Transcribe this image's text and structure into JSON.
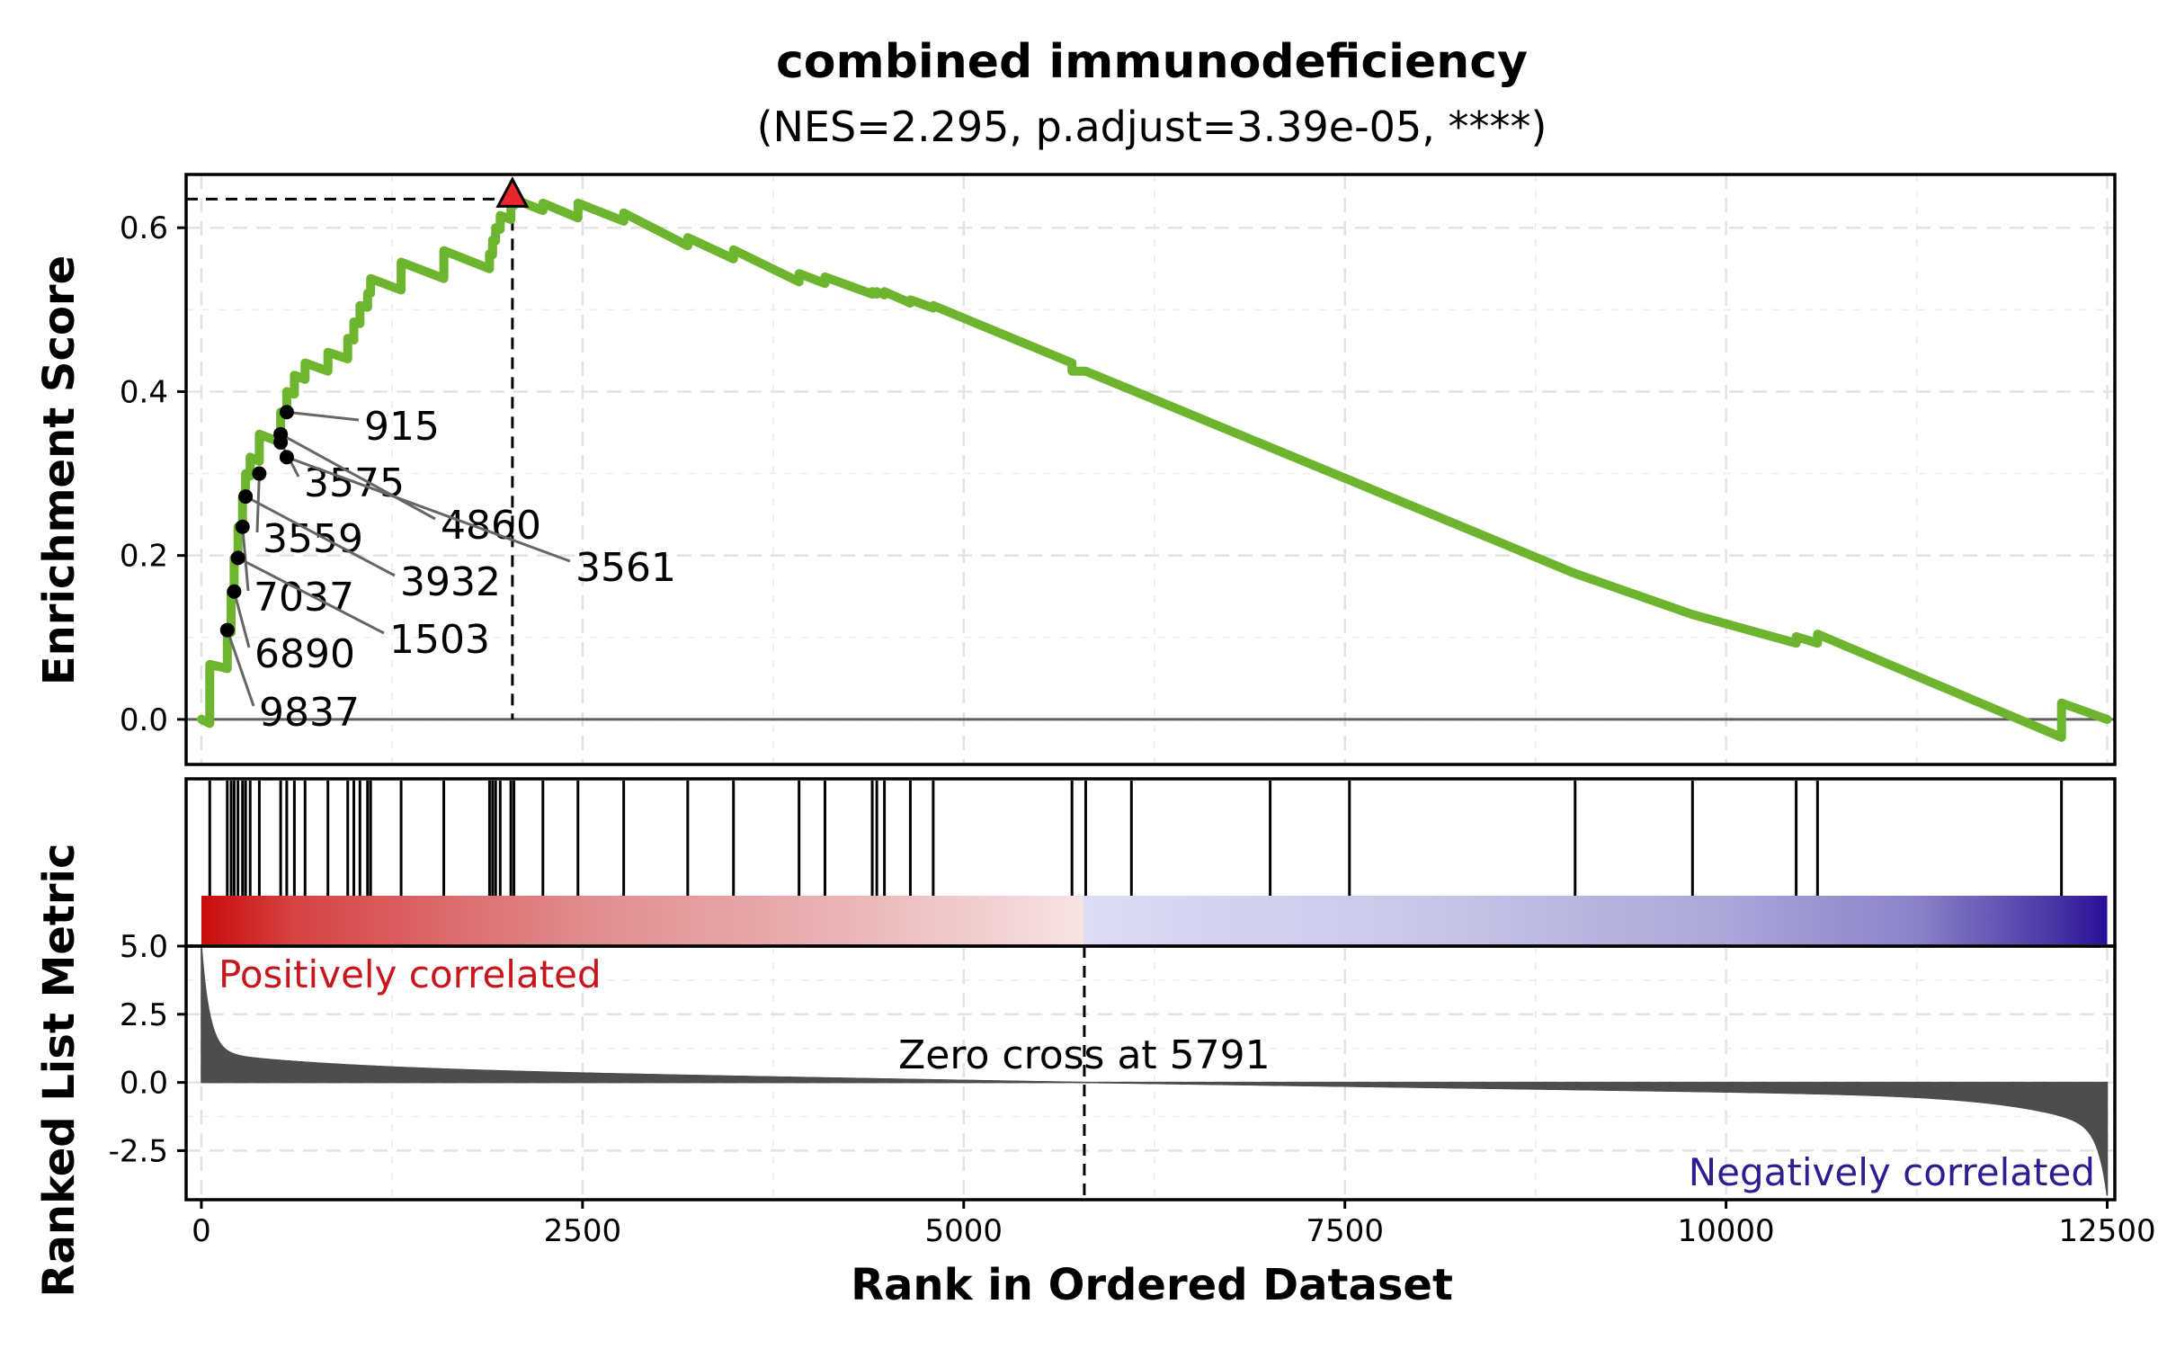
{
  "chart_data": {
    "type": "line",
    "title": "combined immunodeficiency",
    "subtitle": "(NES=2.295, p.adjust=3.39e-05, ****)",
    "xlabel": "Rank in Ordered Dataset",
    "xlim": [
      -100,
      12550
    ],
    "x_ticks": [
      0,
      2500,
      5000,
      7500,
      10000,
      12500
    ],
    "x_tick_labels": [
      "0",
      "2500",
      "5000",
      "7500",
      "10000",
      "12500"
    ],
    "panels": {
      "enrichment": {
        "ylabel": "Enrichment Score",
        "ylim": [
          -0.055,
          0.665
        ],
        "y_ticks": [
          0.0,
          0.2,
          0.4,
          0.6
        ],
        "y_tick_labels": [
          "0.0",
          "0.2",
          "0.4",
          "0.6"
        ],
        "line_color": "#6db52e",
        "peak": {
          "rank": 2040,
          "score": 0.635,
          "marker_color": "#e8262b"
        }
      },
      "hits": {
        "ranks": [
          55,
          170,
          195,
          215,
          240,
          270,
          290,
          320,
          380,
          520,
          560,
          610,
          680,
          830,
          960,
          1000,
          1040,
          1090,
          1110,
          1310,
          1590,
          1890,
          1910,
          1930,
          1960,
          2030,
          2050,
          2240,
          2470,
          2770,
          3190,
          3490,
          3920,
          4090,
          4400,
          4430,
          4480,
          4650,
          4800,
          5710,
          5800,
          6100,
          7010,
          7530,
          9010,
          9780,
          10460,
          10600,
          12200
        ]
      },
      "ranked_metric": {
        "ylabel": "Ranked List Metric",
        "ylim": [
          -4.3,
          5.0
        ],
        "y_ticks": [
          -2.5,
          0.0,
          2.5,
          5.0
        ],
        "y_tick_labels": [
          "-2.5",
          "0.0",
          "2.5",
          "5.0"
        ],
        "fill_color": "#4d4d4d",
        "zero_cross": 5791,
        "zero_cross_label": "Zero cross at 5791",
        "positive_label": "Positively correlated",
        "negative_label": "Negatively correlated",
        "positive_color": "#c8171c",
        "negative_color": "#2d1e8f"
      }
    },
    "series": [
      {
        "x": [
          0,
          55,
          55,
          170,
          170,
          195,
          195,
          215,
          215,
          240,
          240,
          270,
          270,
          290,
          290,
          320,
          320,
          380,
          380,
          520,
          520,
          560,
          560,
          610,
          610,
          680,
          680,
          830,
          830,
          960,
          960,
          1000,
          1000,
          1040,
          1040,
          1090,
          1090,
          1110,
          1110,
          1310,
          1310,
          1590,
          1590,
          1890,
          1890,
          1910,
          1910,
          1930,
          1930,
          1960,
          1960,
          2030,
          2030,
          2050,
          2050,
          2240,
          2240,
          2470,
          2470,
          2770,
          2770,
          3190,
          3190,
          3490,
          3490,
          3920,
          3920,
          4090,
          4090,
          4400,
          4400,
          4430,
          4430,
          4480,
          4480,
          4650,
          4650,
          4800,
          4800,
          5710,
          5710,
          5800,
          5800,
          6100,
          6100,
          7010,
          7010,
          7530,
          7530,
          9010,
          9010,
          9780,
          9780,
          10460,
          10460,
          10600,
          10600,
          12200,
          12200,
          12500
        ],
        "y": [
          0.0,
          -0.005,
          0.067,
          0.062,
          0.109,
          0.106,
          0.156,
          0.155,
          0.197,
          0.195,
          0.235,
          0.232,
          0.272,
          0.27,
          0.3,
          0.297,
          0.32,
          0.315,
          0.348,
          0.338,
          0.375,
          0.372,
          0.4,
          0.397,
          0.42,
          0.415,
          0.435,
          0.425,
          0.448,
          0.44,
          0.465,
          0.463,
          0.485,
          0.483,
          0.505,
          0.503,
          0.52,
          0.52,
          0.538,
          0.524,
          0.558,
          0.538,
          0.572,
          0.55,
          0.568,
          0.567,
          0.585,
          0.584,
          0.6,
          0.598,
          0.615,
          0.61,
          0.628,
          0.627,
          0.635,
          0.621,
          0.63,
          0.612,
          0.63,
          0.608,
          0.618,
          0.578,
          0.588,
          0.562,
          0.573,
          0.534,
          0.544,
          0.532,
          0.54,
          0.519,
          0.522,
          0.519,
          0.522,
          0.518,
          0.522,
          0.508,
          0.512,
          0.502,
          0.505,
          0.435,
          0.425,
          0.425,
          0.425,
          0.402,
          0.402,
          0.332,
          0.332,
          0.292,
          0.292,
          0.178,
          0.178,
          0.128,
          0.128,
          0.093,
          0.101,
          0.093,
          0.104,
          -0.022,
          0.02,
          0.0
        ]
      }
    ],
    "labels": [
      {
        "gene": "915",
        "rank": 560,
        "score": 0.375
      },
      {
        "gene": "3575",
        "rank": 520,
        "score": 0.338
      },
      {
        "gene": "4860",
        "rank": 520,
        "score": 0.348
      },
      {
        "gene": "3561",
        "rank": 560,
        "score": 0.32
      },
      {
        "gene": "3559",
        "rank": 380,
        "score": 0.3
      },
      {
        "gene": "3932",
        "rank": 290,
        "score": 0.272
      },
      {
        "gene": "7037",
        "rank": 270,
        "score": 0.235
      },
      {
        "gene": "1503",
        "rank": 240,
        "score": 0.197
      },
      {
        "gene": "6890",
        "rank": 215,
        "score": 0.156
      },
      {
        "gene": "9837",
        "rank": 170,
        "score": 0.109
      }
    ]
  }
}
